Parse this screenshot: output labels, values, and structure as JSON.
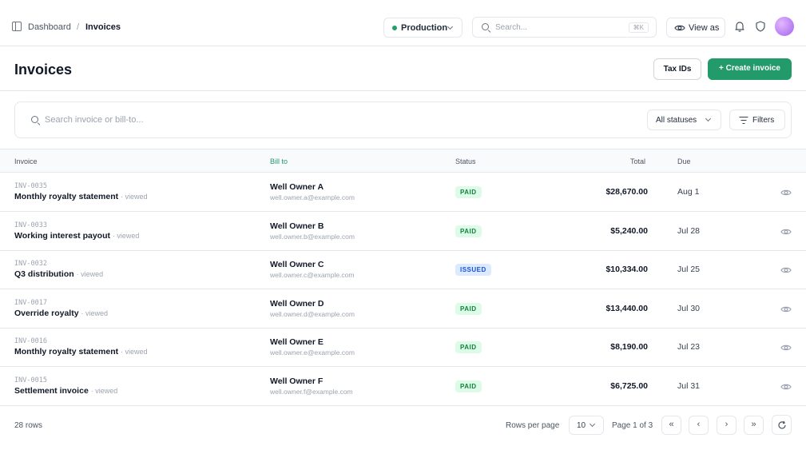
{
  "breadcrumb": {
    "parent": "Dashboard",
    "separator": "/",
    "current": "Invoices"
  },
  "header": {
    "environment": "Production",
    "search_placeholder": "Search...",
    "search_shortcut": "⌘K",
    "view_as_label": "View as"
  },
  "page": {
    "title": "Invoices",
    "tax_ids_label": "Tax IDs",
    "create_label": "+ Create invoice"
  },
  "filters": {
    "search_placeholder": "Search invoice or bill-to...",
    "status_value": "All statuses",
    "filters_label": "Filters"
  },
  "table": {
    "columns": {
      "invoice": "Invoice",
      "bill_to": "Bill to",
      "status": "Status",
      "total": "Total",
      "due": "Due"
    },
    "sorted_column": "bill_to",
    "rows": [
      {
        "number": "INV-0035",
        "description": "Monthly royalty statement",
        "viewed": "· viewed",
        "name": "Well Owner A",
        "email": "well.owner.a@example.com",
        "status": "PAID",
        "total": "$28,670.00",
        "due": "Aug 1"
      },
      {
        "number": "INV-0033",
        "description": "Working interest payout",
        "viewed": "· viewed",
        "name": "Well Owner B",
        "email": "well.owner.b@example.com",
        "status": "PAID",
        "total": "$5,240.00",
        "due": "Jul 28"
      },
      {
        "number": "INV-0032",
        "description": "Q3 distribution",
        "viewed": "· viewed",
        "name": "Well Owner C",
        "email": "well.owner.c@example.com",
        "status": "ISSUED",
        "total": "$10,334.00",
        "due": "Jul 25"
      },
      {
        "number": "INV-0017",
        "description": "Override royalty",
        "viewed": "· viewed",
        "name": "Well Owner D",
        "email": "well.owner.d@example.com",
        "status": "PAID",
        "total": "$13,440.00",
        "due": "Jul 30"
      },
      {
        "number": "INV-0016",
        "description": "Monthly royalty statement",
        "viewed": "· viewed",
        "name": "Well Owner E",
        "email": "well.owner.e@example.com",
        "status": "PAID",
        "total": "$8,190.00",
        "due": "Jul 23"
      },
      {
        "number": "INV-0015",
        "description": "Settlement invoice",
        "viewed": "· viewed",
        "name": "Well Owner F",
        "email": "well.owner.f@example.com",
        "status": "PAID",
        "total": "$6,725.00",
        "due": "Jul 31"
      }
    ]
  },
  "footer": {
    "row_count": "28 rows",
    "rows_per_page_label": "Rows per page",
    "rows_per_page_value": "10",
    "page_info": "Page 1 of 3",
    "first_label": "«",
    "prev_label": "‹",
    "next_label": "›",
    "last_label": "»"
  },
  "colors": {
    "accent": "#229a6a",
    "paid_bg": "#dcfce7",
    "paid_text": "#15803d",
    "issued_bg": "#dbeafe",
    "issued_text": "#1d4ed8"
  },
  "icons": [
    "sidebar-toggle-icon",
    "chevron-down-icon",
    "search-icon",
    "eye-icon",
    "bell-icon",
    "shield-icon",
    "filter-icon",
    "refresh-icon"
  ]
}
